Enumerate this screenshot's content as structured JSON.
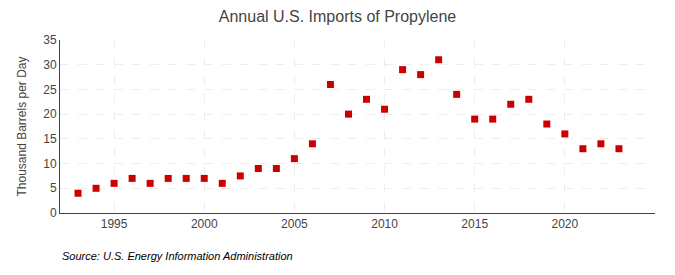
{
  "chart_data": {
    "type": "scatter",
    "title": "Annual U.S. Imports of Propylene",
    "ylabel": "Thousand Barrels per Day",
    "annotations": [
      "Source: U.S. Energy Information Administration"
    ],
    "x": [
      1993,
      1994,
      1995,
      1996,
      1997,
      1998,
      1999,
      2000,
      2001,
      2002,
      2003,
      2004,
      2005,
      2006,
      2007,
      2008,
      2009,
      2010,
      2011,
      2012,
      2013,
      2014,
      2015,
      2016,
      2017,
      2018,
      2019,
      2020,
      2021,
      2022,
      2023
    ],
    "values": [
      4.0,
      5.0,
      6.0,
      7.0,
      6.0,
      7.0,
      7.0,
      7.0,
      6.0,
      7.5,
      9.0,
      9.0,
      11.0,
      14.0,
      26.0,
      20.0,
      23.0,
      21.0,
      29.0,
      28.0,
      31.0,
      24.0,
      19.0,
      19.0,
      22.0,
      23.0,
      18.0,
      16.0,
      13.0,
      14.0,
      13.0
    ],
    "color": "#cc0000",
    "marker": "square",
    "xlim": [
      1992,
      2025
    ],
    "xticks": [
      1995,
      2000,
      2005,
      2010,
      2015,
      2020
    ],
    "ylim": [
      0,
      35
    ],
    "yticks": [
      0,
      5,
      10,
      15,
      20,
      25,
      30,
      35
    ],
    "grid": true
  }
}
